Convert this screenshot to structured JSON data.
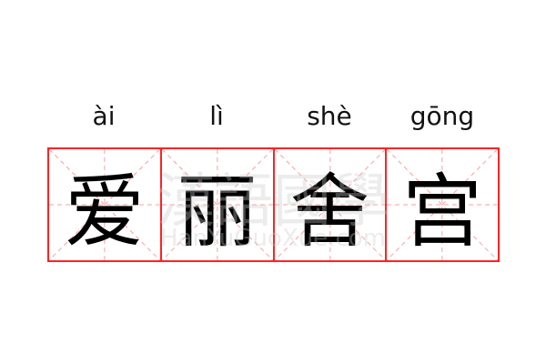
{
  "pinyin": [
    "ài",
    "lì",
    "shè",
    "gōng"
  ],
  "characters": [
    "爱",
    "丽",
    "舍",
    "宫"
  ],
  "watermark": {
    "chinese": "漢語國學",
    "latin": "HanYuGuoXue.com"
  },
  "colors": {
    "grid": "#ff2222",
    "guide": "#f6a0a0",
    "text": "#000000"
  }
}
